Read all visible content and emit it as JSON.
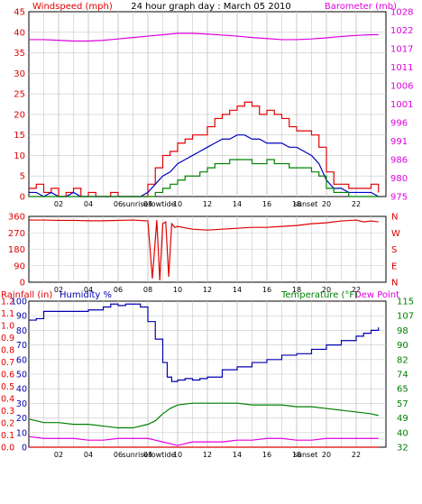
{
  "header": {
    "left_title": "Windspeed (mph)",
    "center_title": "24 hour graph day : March 05 2010",
    "right_title": "Barometer (mb)"
  },
  "colors": {
    "windspeed": "#e00000",
    "windavg": "#0000c0",
    "windmin": "#008000",
    "barometer": "#e000e0",
    "direction": "#e00000",
    "humidity": "#0000b0",
    "temperature": "#008000",
    "dewpoint": "#e000e0",
    "rainfall": "#e00000",
    "grid": "#c8c8c8"
  },
  "labels": {
    "sunrise": "sunrise",
    "lowtide": "lowtide",
    "sunset": "sunset",
    "sunrise2": "sunrise",
    "lowtide2": "lowtide",
    "sunset2": "sunset",
    "rainfall": "Rainfall (in)",
    "humidity": "Humidity %",
    "temperature": "Temperature (°F)",
    "dewpoint": "Dew Point"
  },
  "chart_data": [
    {
      "type": "line",
      "title": "24 hour graph day : March 05 2010",
      "x_ticks": [
        "02",
        "04",
        "06",
        "08",
        "10",
        "12",
        "14",
        "16",
        "18",
        "20",
        "22"
      ],
      "left_axis": {
        "label": "Windspeed (mph)",
        "ticks": [
          "0",
          "5",
          "10",
          "15",
          "20",
          "25",
          "30",
          "35",
          "40",
          "45"
        ],
        "range": [
          0,
          45
        ]
      },
      "right_axis": {
        "label": "Barometer (mb)",
        "ticks": [
          "975",
          "980",
          "986",
          "991",
          "996",
          "1001",
          "1006",
          "1011",
          "1017",
          "1022",
          "1028"
        ],
        "range": [
          975,
          1028
        ]
      },
      "series": [
        {
          "key": "windgust",
          "x": [
            0,
            0.5,
            1,
            1.5,
            2,
            2.5,
            3,
            3.5,
            4,
            4.5,
            5,
            5.5,
            6,
            6.5,
            7,
            7.5,
            8,
            8.5,
            9,
            9.5,
            10,
            10.5,
            11,
            11.5,
            12,
            12.5,
            13,
            13.5,
            14,
            14.5,
            15,
            15.5,
            16,
            16.5,
            17,
            17.5,
            18,
            18.5,
            19,
            19.5,
            20,
            20.5,
            21,
            21.5,
            22,
            22.5,
            23,
            23.5
          ],
          "values": [
            2,
            3,
            1,
            2,
            0,
            1,
            2,
            0,
            1,
            0,
            0,
            1,
            0,
            0,
            0,
            0,
            3,
            7,
            10,
            11,
            13,
            14,
            15,
            15,
            17,
            19,
            20,
            21,
            22,
            23,
            22,
            20,
            21,
            20,
            19,
            17,
            16,
            16,
            15,
            12,
            6,
            3,
            3,
            2,
            2,
            2,
            3,
            1
          ]
        },
        {
          "key": "windavg",
          "x": [
            0,
            0.5,
            1,
            1.5,
            2,
            2.5,
            3,
            3.5,
            4,
            4.5,
            5,
            5.5,
            6,
            6.5,
            7,
            7.5,
            8,
            8.5,
            9,
            9.5,
            10,
            10.5,
            11,
            11.5,
            12,
            12.5,
            13,
            13.5,
            14,
            14.5,
            15,
            15.5,
            16,
            16.5,
            17,
            17.5,
            18,
            18.5,
            19,
            19.5,
            20,
            20.5,
            21,
            21.5,
            22,
            22.5,
            23,
            23.5
          ],
          "values": [
            1,
            1,
            0,
            1,
            0,
            0,
            1,
            0,
            0,
            0,
            0,
            0,
            0,
            0,
            0,
            0,
            1,
            3,
            5,
            6,
            8,
            9,
            10,
            11,
            12,
            13,
            14,
            14,
            15,
            15,
            14,
            14,
            13,
            13,
            13,
            12,
            12,
            11,
            10,
            8,
            4,
            2,
            2,
            1,
            1,
            1,
            1,
            0
          ]
        },
        {
          "key": "windmin",
          "x": [
            0,
            0.5,
            1,
            1.5,
            2,
            2.5,
            3,
            3.5,
            4,
            4.5,
            5,
            5.5,
            6,
            6.5,
            7,
            7.5,
            8,
            8.5,
            9,
            9.5,
            10,
            10.5,
            11,
            11.5,
            12,
            12.5,
            13,
            13.5,
            14,
            14.5,
            15,
            15.5,
            16,
            16.5,
            17,
            17.5,
            18,
            18.5,
            19,
            19.5,
            20,
            20.5,
            21,
            21.5,
            22,
            22.5,
            23,
            23.5
          ],
          "values": [
            0,
            0,
            0,
            0,
            0,
            0,
            0,
            0,
            0,
            0,
            0,
            0,
            0,
            0,
            0,
            0,
            0,
            1,
            2,
            3,
            4,
            5,
            5,
            6,
            7,
            8,
            8,
            9,
            9,
            9,
            8,
            8,
            9,
            8,
            8,
            7,
            7,
            7,
            6,
            5,
            2,
            1,
            1,
            0,
            0,
            0,
            0,
            0
          ]
        },
        {
          "key": "barometer",
          "x": [
            0,
            1,
            2,
            3,
            4,
            5,
            6,
            7,
            8,
            9,
            10,
            11,
            12,
            13,
            14,
            15,
            16,
            17,
            18,
            19,
            20,
            21,
            22,
            23,
            23.5
          ],
          "values": [
            1020,
            1020,
            1019.8,
            1019.6,
            1019.6,
            1019.8,
            1020.2,
            1020.6,
            1021,
            1021.4,
            1021.8,
            1021.8,
            1021.6,
            1021.3,
            1021,
            1020.6,
            1020.3,
            1020,
            1020,
            1020.2,
            1020.5,
            1020.9,
            1021.2,
            1021.4,
            1021.4
          ]
        }
      ]
    },
    {
      "type": "line",
      "title": "",
      "x_ticks": [
        "02",
        "04",
        "06",
        "08",
        "10",
        "12",
        "14",
        "16",
        "18",
        "20",
        "22"
      ],
      "left_axis": {
        "label": "",
        "ticks": [
          "360",
          "270",
          "180",
          "90",
          "0"
        ],
        "range": [
          0,
          360
        ]
      },
      "right_axis": {
        "label": "",
        "ticks": [
          "N",
          "W",
          "S",
          "E",
          "N"
        ]
      },
      "series": [
        {
          "key": "direction",
          "x": [
            0,
            1,
            2,
            3,
            4,
            5,
            6,
            7,
            8,
            8.3,
            8.6,
            8.8,
            9,
            9.2,
            9.4,
            9.6,
            9.8,
            10,
            11,
            12,
            13,
            14,
            15,
            16,
            17,
            18,
            19,
            20,
            21,
            22,
            22.5,
            23,
            23.5
          ],
          "values": [
            340,
            340,
            338,
            338,
            336,
            336,
            338,
            340,
            335,
            20,
            340,
            10,
            320,
            330,
            30,
            320,
            300,
            305,
            290,
            285,
            290,
            295,
            300,
            300,
            305,
            310,
            320,
            325,
            335,
            340,
            330,
            335,
            330
          ]
        }
      ]
    },
    {
      "type": "line",
      "title": "",
      "x_ticks": [
        "02",
        "04",
        "06",
        "08",
        "10",
        "12",
        "14",
        "16",
        "18",
        "20",
        "22"
      ],
      "rain_axis": {
        "label": "Rainfall (in)",
        "ticks": [
          "0.0",
          "0.1",
          "0.2",
          "0.3",
          "0.4",
          "0.5",
          "0.6",
          "0.7",
          "0.8",
          "0.9",
          "1.0",
          "1.1",
          "1.2"
        ],
        "range": [
          0,
          1.2
        ]
      },
      "humidity_axis": {
        "label": "Humidity %",
        "ticks": [
          "0",
          "10",
          "20",
          "30",
          "40",
          "50",
          "60",
          "70",
          "80",
          "90",
          "100"
        ],
        "range": [
          0,
          100
        ]
      },
      "temp_axis": {
        "label": "Temperature (°F)",
        "ticks": [
          "32",
          "40",
          "49",
          "57",
          "65",
          "74",
          "82",
          "90",
          "98",
          "107",
          "115"
        ],
        "range": [
          32,
          115
        ]
      },
      "series": [
        {
          "key": "humidity",
          "x": [
            0,
            0.5,
            1,
            2,
            3,
            4,
            5,
            5.5,
            6,
            6.5,
            7,
            7.5,
            8,
            8.5,
            9,
            9.3,
            9.6,
            10,
            10.5,
            11,
            11.5,
            12,
            13,
            14,
            15,
            16,
            17,
            18,
            19,
            20,
            21,
            22,
            22.5,
            23,
            23.5
          ],
          "values": [
            87,
            88,
            93,
            93,
            93,
            94,
            96,
            98,
            97,
            98,
            98,
            96,
            86,
            74,
            58,
            48,
            45,
            46,
            47,
            46,
            47,
            48,
            53,
            55,
            58,
            60,
            63,
            64,
            67,
            70,
            73,
            76,
            78,
            80,
            82
          ]
        },
        {
          "key": "temperature",
          "x": [
            0,
            0.5,
            1,
            2,
            3,
            4,
            5,
            6,
            7,
            8,
            8.5,
            9,
            9.5,
            10,
            11,
            12,
            13,
            14,
            15,
            16,
            17,
            18,
            19,
            20,
            21,
            22,
            23,
            23.5
          ],
          "values": [
            48,
            47,
            46,
            46,
            45,
            45,
            44,
            43,
            43,
            45,
            47,
            51,
            54,
            56,
            57,
            57,
            57,
            57,
            56,
            56,
            56,
            55,
            55,
            54,
            53,
            52,
            51,
            50
          ]
        },
        {
          "key": "dewpoint",
          "x": [
            0,
            1,
            2,
            3,
            4,
            5,
            6,
            7,
            8,
            8.5,
            9,
            9.5,
            10,
            10.5,
            11,
            12,
            13,
            14,
            15,
            16,
            17,
            18,
            19,
            20,
            21,
            22,
            23,
            23.5
          ],
          "values": [
            38,
            37,
            37,
            37,
            36,
            36,
            37,
            37,
            37,
            36,
            35,
            34,
            33,
            34,
            35,
            35,
            35,
            36,
            36,
            37,
            37,
            36,
            36,
            37,
            37,
            37,
            37,
            37
          ]
        },
        {
          "key": "rainfall",
          "x": [
            0,
            23.5
          ],
          "values": [
            0,
            0
          ]
        }
      ]
    }
  ]
}
